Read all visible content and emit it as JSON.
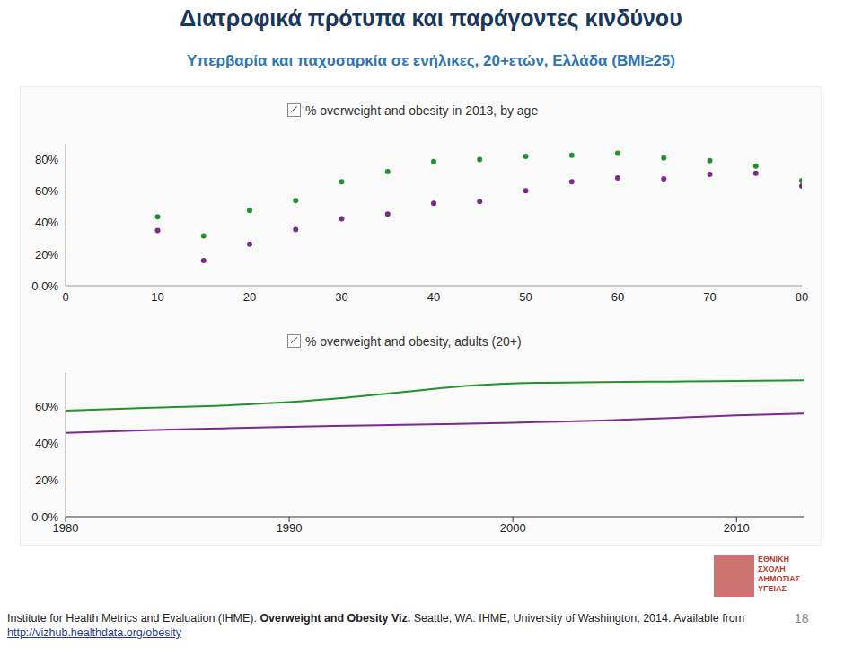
{
  "header": {
    "title": "Διατροφικά πρότυπα και παράγοντες κινδύνου",
    "subtitle": "Υπερβαρία και παχυσαρκία σε ενήλικες, 20+ετών, Ελλάδα (BMI≥25)"
  },
  "chart_data": [
    {
      "type": "scatter",
      "title": "% overweight and obesity in 2013, by age",
      "marker": "circle",
      "x": [
        10,
        15,
        20,
        25,
        30,
        35,
        40,
        45,
        50,
        55,
        60,
        65,
        70,
        75,
        80
      ],
      "series": [
        {
          "color": "#23922b",
          "values": [
            43.7,
            31.6,
            47.7,
            54,
            66,
            72.4,
            78.7,
            80,
            82,
            82.8,
            84,
            81,
            79.3,
            75.9,
            66.7
          ]
        },
        {
          "color": "#7d2a8c",
          "values": [
            35,
            16,
            26.4,
            35.6,
            42.5,
            45.4,
            52.3,
            53.4,
            60.3,
            66,
            68.4,
            67.8,
            70.7,
            71.3,
            63.2
          ]
        }
      ],
      "xlim": [
        0,
        80
      ],
      "xticks": [
        0,
        10,
        20,
        30,
        40,
        50,
        60,
        70,
        80
      ],
      "ylim": [
        0,
        90
      ],
      "yticks": [
        {
          "value": 0,
          "label": "0.0%"
        },
        {
          "value": 20,
          "label": "20%"
        },
        {
          "value": 40,
          "label": "40%"
        },
        {
          "value": 60,
          "label": "60%"
        },
        {
          "value": 80,
          "label": "80%"
        }
      ],
      "grid": false
    },
    {
      "type": "line",
      "title": "% overweight and obesity, adults (20+)",
      "x": [
        1980,
        1983,
        1986,
        1989,
        1992,
        1995,
        1998,
        2001,
        2004,
        2007,
        2010,
        2013
      ],
      "series": [
        {
          "color": "#23922b",
          "values": [
            57.5,
            58.8,
            59.8,
            61.5,
            64.0,
            67.5,
            71.0,
            72.6,
            73.0,
            73.3,
            73.6,
            74.0
          ]
        },
        {
          "color": "#7d2a8c",
          "values": [
            45.5,
            46.7,
            47.6,
            48.5,
            49.2,
            49.8,
            50.4,
            51.3,
            52.2,
            53.5,
            55.0,
            56.0
          ]
        }
      ],
      "xlim": [
        1980,
        2013
      ],
      "xticks": [
        1980,
        1990,
        2000,
        2010
      ],
      "ylim": [
        0,
        78
      ],
      "yticks": [
        {
          "value": 0,
          "label": "0.0%"
        },
        {
          "value": 20,
          "label": "20%"
        },
        {
          "value": 40,
          "label": "40%"
        },
        {
          "value": 60,
          "label": "60%"
        }
      ],
      "grid": false
    }
  ],
  "footer": {
    "citation": {
      "author": "Institute for Health Metrics and Evaluation (IHME). ",
      "work": "Overweight and Obesity Viz.",
      "publisher": " Seattle, WA: IHME, University of Washington, 2014. Available from ",
      "url": "http://vizhub.healthdata.org/obesity"
    },
    "page": 18
  },
  "logo": {
    "lines": [
      "ΕΘΝΙΚΗ",
      "ΣΧΟΛΗ",
      "ΔΗΜΟΣΙΑΣ",
      "ΥΓΕΙΑΣ"
    ]
  }
}
